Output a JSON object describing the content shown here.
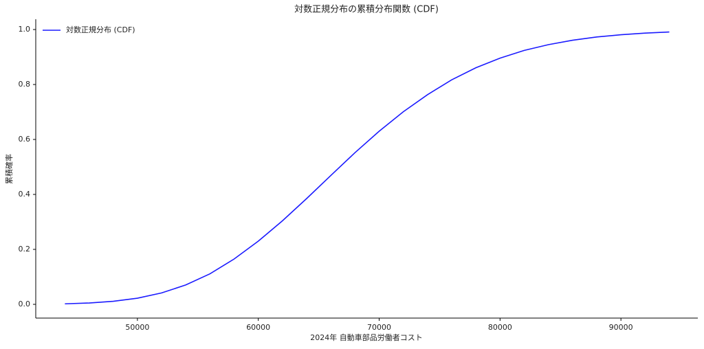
{
  "chart_data": {
    "type": "line",
    "title": "対数正規分布の累積分布関数 (CDF)",
    "x_label": "2024年 自動車部品労働者コスト",
    "y_label": "累積確率",
    "x": [
      44000,
      46000,
      48000,
      50000,
      52000,
      54000,
      56000,
      58000,
      60000,
      62000,
      64000,
      66000,
      68000,
      70000,
      72000,
      74000,
      76000,
      78000,
      80000,
      82000,
      84000,
      86000,
      88000,
      90000,
      92000,
      94000
    ],
    "series": [
      {
        "name": "対数正規分布 (CDF)",
        "color": "#1a1aff",
        "values": [
          0.0019,
          0.0049,
          0.011,
          0.0224,
          0.0415,
          0.0706,
          0.111,
          0.165,
          0.23,
          0.304,
          0.385,
          0.469,
          0.552,
          0.63,
          0.701,
          0.763,
          0.817,
          0.861,
          0.896,
          0.924,
          0.945,
          0.961,
          0.973,
          0.981,
          0.987,
          0.991
        ]
      }
    ],
    "xlim": [
      41590,
      96360
    ],
    "ylim": [
      -0.05,
      1.0375
    ],
    "xticks": [
      50000,
      60000,
      70000,
      80000,
      90000
    ],
    "yticks": [
      {
        "value": 0,
        "label": "0.0"
      },
      0.2,
      0.4,
      0.6,
      0.8,
      {
        "value": 1,
        "label": "1.0"
      }
    ],
    "legend": "upper left",
    "grid": false
  }
}
